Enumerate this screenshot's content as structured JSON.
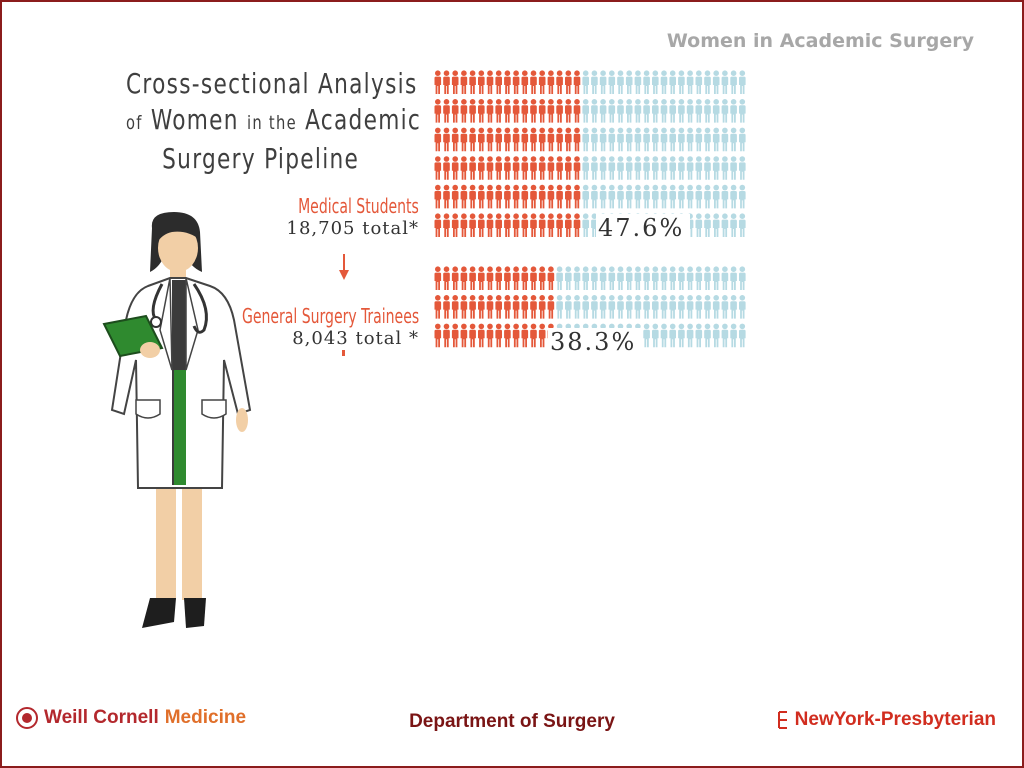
{
  "header": {
    "title": "Women in Academic Surgery"
  },
  "title": {
    "line1": "Cross-sectional Analysis",
    "of": "of",
    "women": "Women",
    "in_the": "in the",
    "academic": "Academic",
    "line3": "Surgery Pipeline"
  },
  "colors": {
    "women": "#e4583a",
    "men": "#b6dae3",
    "title_text": "#3f3f3f",
    "header_text": "#a7a7a7",
    "footer_dept": "#7a1414",
    "frame": "#8b1c1c"
  },
  "chart_data": {
    "type": "table",
    "series": [
      {
        "name": "Medical Students",
        "total": "18,705 total",
        "total_note": "*",
        "percent_women": 47.6,
        "percent_label": "47.6%"
      },
      {
        "name": "General Surgery Trainees",
        "total": "8,043 total",
        "total_note": "*",
        "percent_women": 38.3,
        "percent_label": "38.3%"
      }
    ]
  },
  "illustration": {
    "subject": "female doctor with clipboard and stethoscope"
  },
  "footer": {
    "left_logo_text_part1": "Weill Cornell",
    "left_logo_text_part2": "Medicine",
    "department": "Department of Surgery",
    "right_logo_text": "NewYork-Presbyterian"
  }
}
